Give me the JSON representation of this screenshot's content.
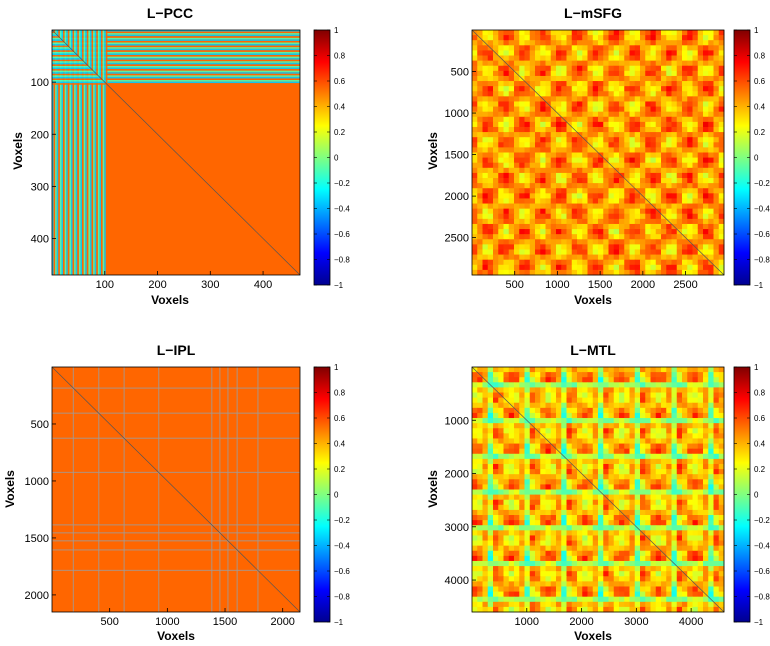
{
  "chart_data": [
    {
      "type": "heatmap",
      "title": "L−PCC",
      "xlabel": "Voxels",
      "ylabel": "Voxels",
      "size": 470,
      "xticks": [
        "100",
        "200",
        "300",
        "400"
      ],
      "yticks": [
        "100",
        "200",
        "300",
        "400"
      ],
      "pattern": "block",
      "block_extent": 105,
      "base_value": 0.55,
      "colorbar_ticks": [
        "1",
        "0.8",
        "0.6",
        "0.4",
        "0.2",
        "0",
        "−0.2",
        "−0.4",
        "−0.6",
        "−0.8",
        "−1"
      ],
      "clim": [
        -1,
        1
      ]
    },
    {
      "type": "heatmap",
      "title": "L−mSFG",
      "xlabel": "Voxels",
      "ylabel": "Voxels",
      "size": 2950,
      "xticks": [
        "500",
        "1000",
        "1500",
        "2000",
        "2500"
      ],
      "yticks": [
        "500",
        "1000",
        "1500",
        "2000",
        "2500"
      ],
      "pattern": "grid",
      "base_value": 0.45,
      "colorbar_ticks": [
        "1",
        "0.8",
        "0.6",
        "0.4",
        "0.2",
        "0",
        "−0.2",
        "−0.4",
        "−0.6",
        "−0.8",
        "−1"
      ],
      "clim": [
        -1,
        1
      ]
    },
    {
      "type": "heatmap",
      "title": "L−IPL",
      "xlabel": "Voxels",
      "ylabel": "Voxels",
      "size": 2150,
      "xticks": [
        "500",
        "1000",
        "1500",
        "2000"
      ],
      "yticks": [
        "500",
        "1000",
        "1500",
        "2000"
      ],
      "pattern": "sparse",
      "base_value": 0.55,
      "colorbar_ticks": [
        "1",
        "0.8",
        "0.6",
        "0.4",
        "0.2",
        "0",
        "−0.2",
        "−0.4",
        "−0.6",
        "−0.8",
        "−1"
      ],
      "clim": [
        -1,
        1
      ]
    },
    {
      "type": "heatmap",
      "title": "L−MTL",
      "xlabel": "Voxels",
      "ylabel": "Voxels",
      "size": 4600,
      "xticks": [
        "1000",
        "2000",
        "3000",
        "4000"
      ],
      "yticks": [
        "1000",
        "2000",
        "3000",
        "4000"
      ],
      "pattern": "grid",
      "base_value": 0.4,
      "colorbar_ticks": [
        "1",
        "0.8",
        "0.6",
        "0.4",
        "0.2",
        "0",
        "−0.2",
        "−0.4",
        "−0.6",
        "−0.8",
        "−1"
      ],
      "clim": [
        -1,
        1
      ]
    }
  ]
}
